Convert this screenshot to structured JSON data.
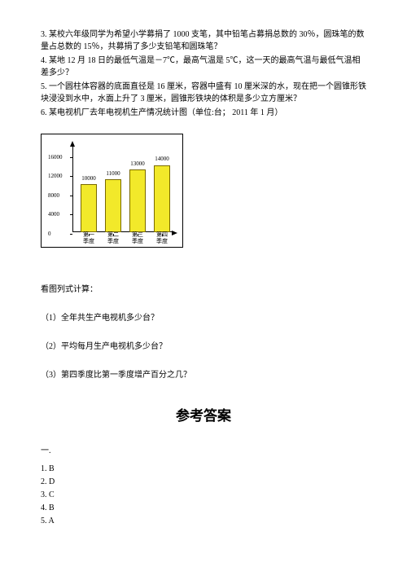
{
  "problems": {
    "p3": "3. 某校六年级同学为希望小学募捐了 1000 支笔，其中铅笔占募捐总数的 30％，圆珠笔的数量占总数的 15％，共募捐了多少支铅笔和圆珠笔？",
    "p4": "4. 某地 12 月 18 日的最低气温是－7℃，最高气温是 5℃，这一天的最高气温与最低气温相差多少？",
    "p5": "5. 一个圆柱体容器的底面直径是 16 厘米，容器中盛有 10 厘米深的水，现在把一个圆锥形铁块浸没到水中，水面上升了 3 厘米，圆锥形铁块的体积是多少立方厘米？",
    "p6": "6. 某电视机厂去年电视机生产情况统计图（单位:台；  2011 年 1 月）"
  },
  "chart": {
    "type": "bar",
    "y_ticks": [
      0,
      4000,
      8000,
      12000,
      16000
    ],
    "y_max": 18000,
    "bar_fill": "#f2e92a",
    "bar_border": "#7a6a00",
    "categories": [
      {
        "line1": "第一",
        "line2": "季度",
        "value": 10000,
        "label": "10000"
      },
      {
        "line1": "第二",
        "line2": "季度",
        "value": 11000,
        "label": "11000"
      },
      {
        "line1": "第三",
        "line2": "季度",
        "value": 13000,
        "label": "13000"
      },
      {
        "line1": "第四",
        "line2": "季度",
        "value": 14000,
        "label": "14000"
      }
    ]
  },
  "captions": {
    "lookCompute": "看图列式计算：",
    "q1": "（1）全年共生产电视机多少台？",
    "q2": "（2）平均每月生产电视机多少台？",
    "q3": "（3）第四季度比第一季度增产百分之几？"
  },
  "answers": {
    "title": "参考答案",
    "section": "一.",
    "items": [
      "1. B",
      "2. D",
      "3. C",
      "4. B",
      "5. A"
    ]
  }
}
